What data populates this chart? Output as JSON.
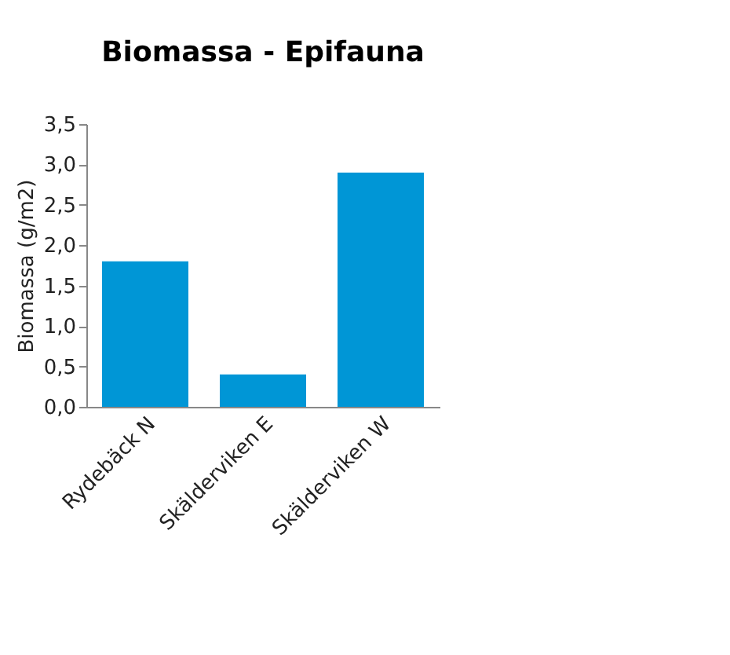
{
  "chart_data": {
    "type": "bar",
    "title": "Biomassa - Epifauna",
    "ylabel": "Biomassa (g/m2)",
    "categories": [
      "Rydebäck N",
      "Skälderviken E",
      "Skälderviken W"
    ],
    "values": [
      1.8,
      0.4,
      2.9
    ],
    "color": "#0096d6",
    "ylim": [
      0,
      3.5
    ],
    "yticks": [
      {
        "value": 0,
        "label": "0,0"
      },
      {
        "value": 0.5,
        "label": "0,5"
      },
      {
        "value": 1,
        "label": "1,0"
      },
      {
        "value": 1.5,
        "label": "1,5"
      },
      {
        "value": 2,
        "label": "2,0"
      },
      {
        "value": 2.5,
        "label": "2,5"
      },
      {
        "value": 3,
        "label": "3,0"
      },
      {
        "value": 3.5,
        "label": "3,5"
      }
    ],
    "grid": false
  }
}
